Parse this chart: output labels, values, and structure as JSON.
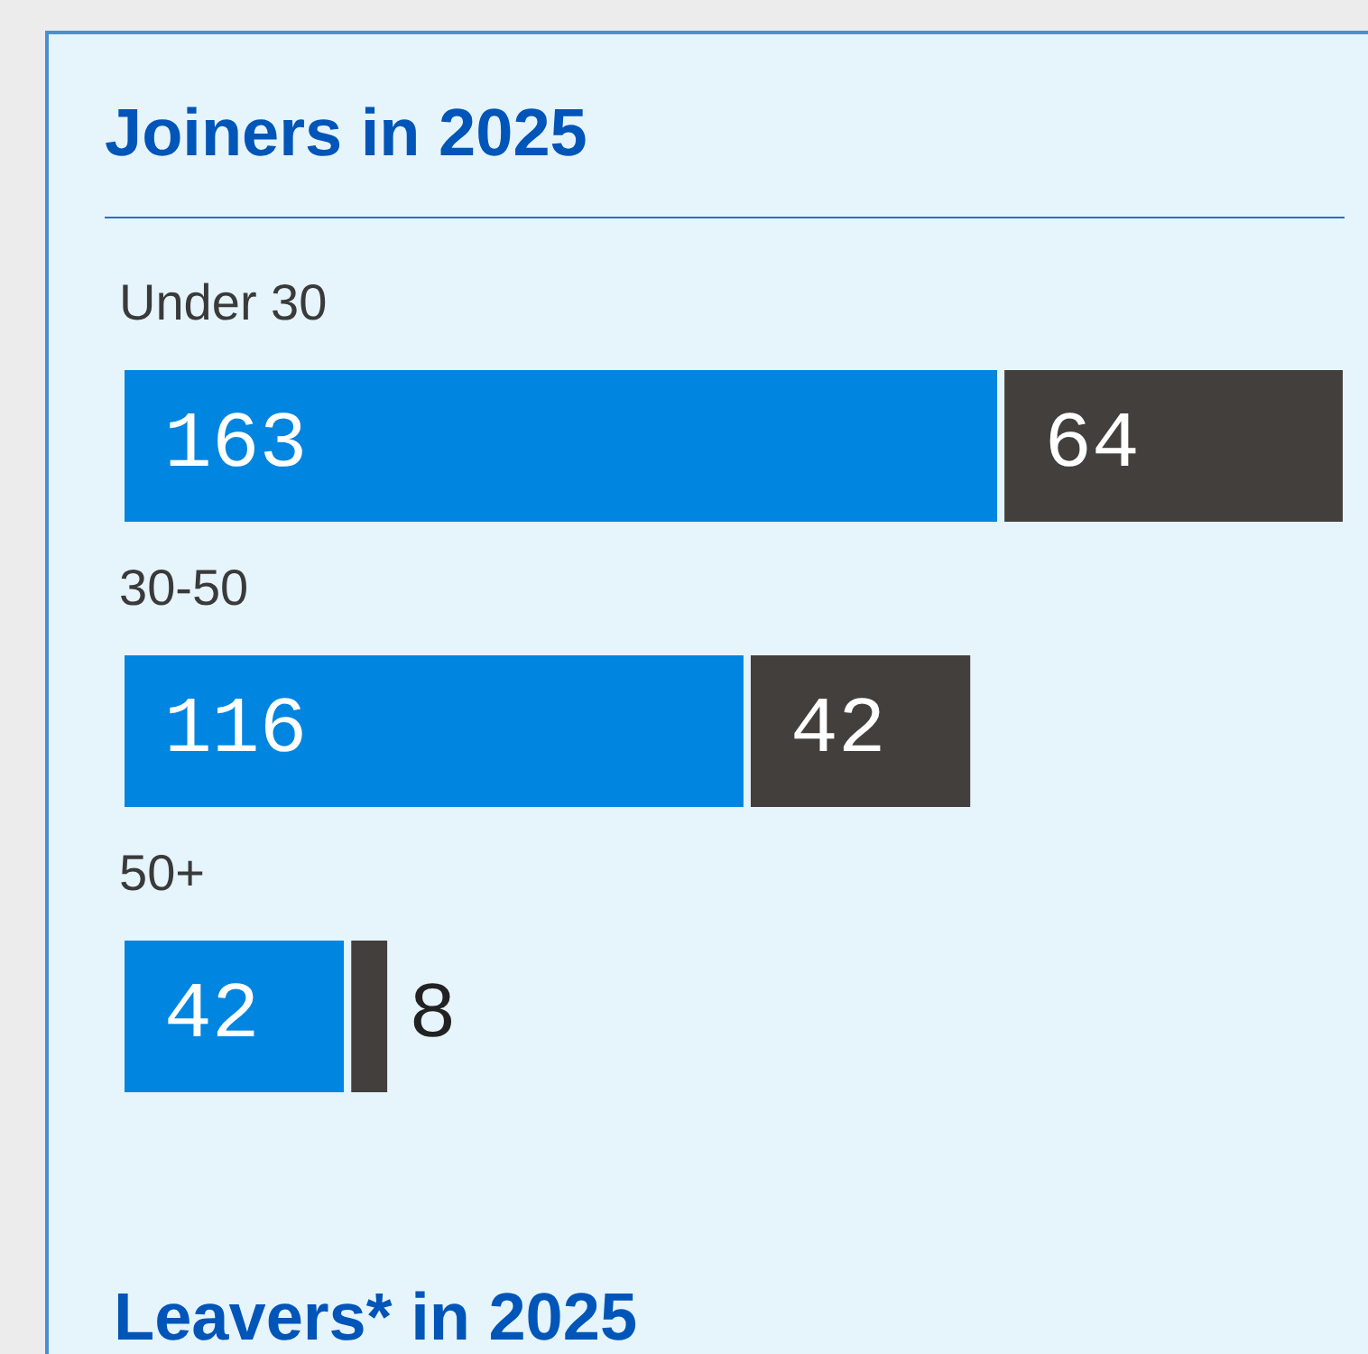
{
  "chart_data": {
    "type": "bar",
    "orientation": "horizontal",
    "stacked": true,
    "title": "Joiners in 2025",
    "categories": [
      "Under 30",
      "30-50",
      "50+"
    ],
    "series": [
      {
        "color": "#0085e0",
        "values": [
          163,
          116,
          42
        ]
      },
      {
        "color": "#433f3c",
        "values": [
          64,
          42,
          8
        ]
      }
    ],
    "data_labels": true,
    "annotations": [
      "Leavers* in 2025"
    ]
  }
}
